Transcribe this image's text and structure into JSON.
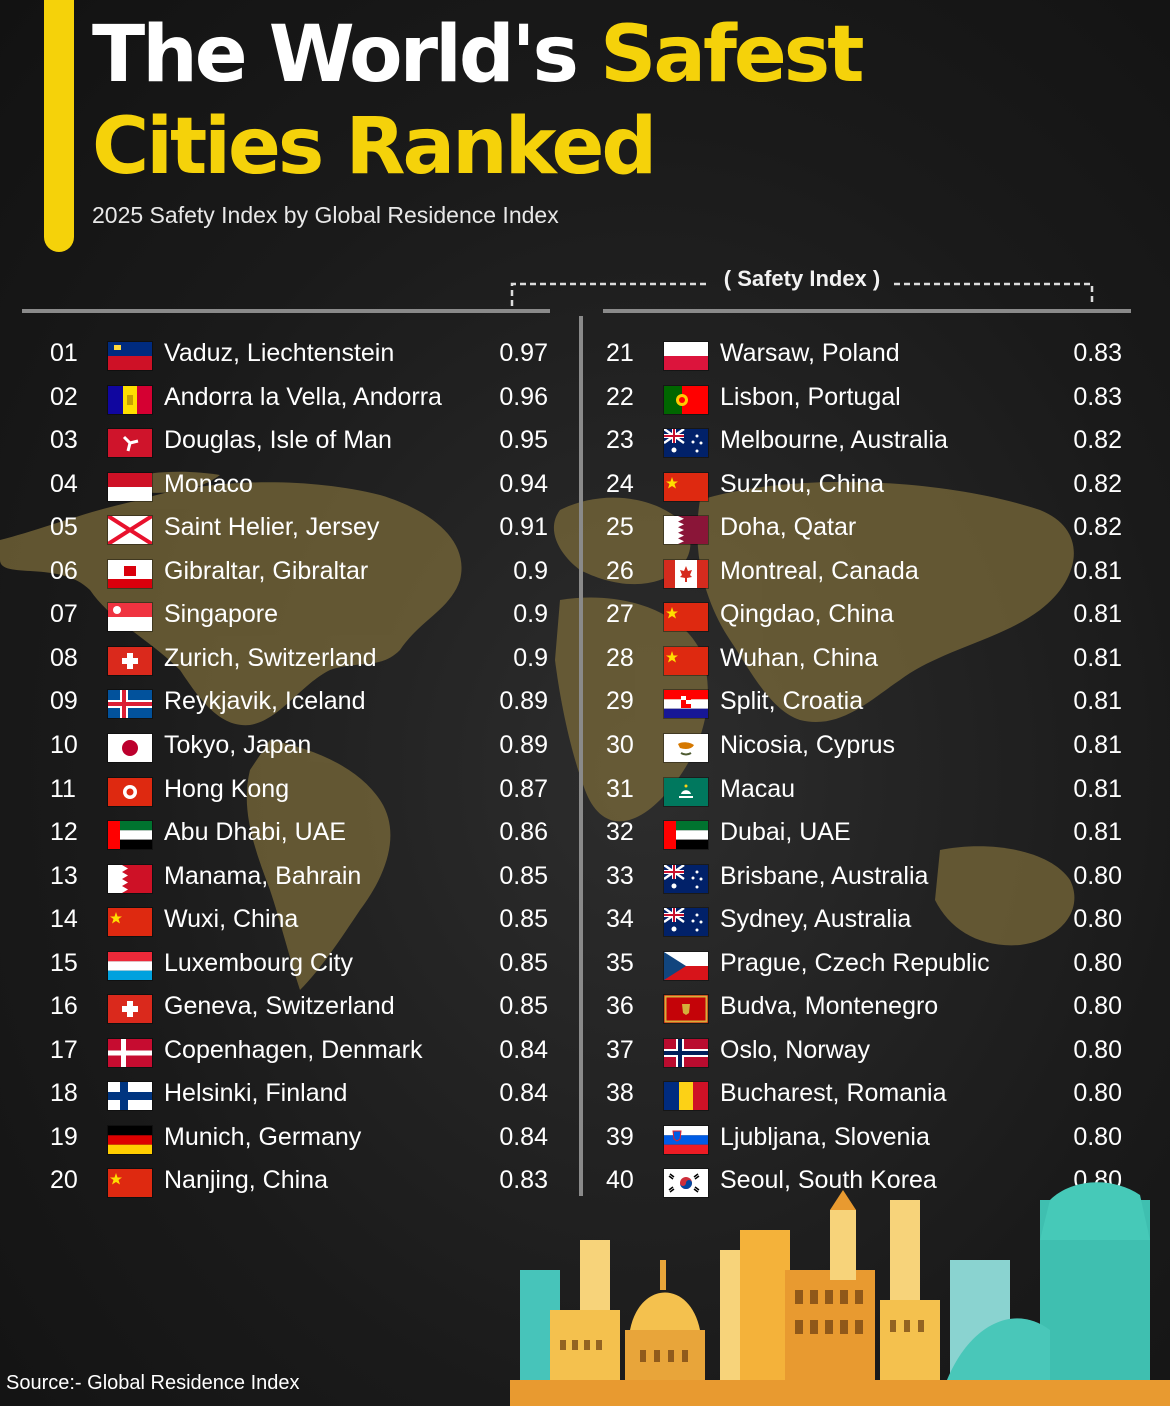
{
  "header": {
    "title_part1": "The World's",
    "title_part2": "Safest",
    "title_line2": "Cities Ranked",
    "subtitle": "2025 Safety Index by Global Residence Index",
    "column_label": "( Safety Index )"
  },
  "colors": {
    "accent": "#f5d20a",
    "background": "#1c1c1c",
    "map": "#7a6a3a"
  },
  "rankings": [
    {
      "rank": "01",
      "city": "Vaduz, Liechtenstein",
      "score": "0.97",
      "flag": "liechtenstein-flag-icon"
    },
    {
      "rank": "02",
      "city": "Andorra la Vella, Andorra",
      "score": "0.96",
      "flag": "andorra-flag-icon"
    },
    {
      "rank": "03",
      "city": "Douglas, Isle of Man",
      "score": "0.95",
      "flag": "isle-of-man-flag-icon"
    },
    {
      "rank": "04",
      "city": "Monaco",
      "score": "0.94",
      "flag": "monaco-flag-icon"
    },
    {
      "rank": "05",
      "city": "Saint Helier, Jersey",
      "score": "0.91",
      "flag": "jersey-flag-icon"
    },
    {
      "rank": "06",
      "city": "Gibraltar, Gibraltar",
      "score": "0.9",
      "flag": "gibraltar-flag-icon"
    },
    {
      "rank": "07",
      "city": "Singapore",
      "score": "0.9",
      "flag": "singapore-flag-icon"
    },
    {
      "rank": "08",
      "city": "Zurich, Switzerland",
      "score": "0.9",
      "flag": "switzerland-flag-icon"
    },
    {
      "rank": "09",
      "city": "Reykjavik, Iceland",
      "score": "0.89",
      "flag": "iceland-flag-icon"
    },
    {
      "rank": "10",
      "city": "Tokyo, Japan",
      "score": "0.89",
      "flag": "japan-flag-icon"
    },
    {
      "rank": "11",
      "city": "Hong Kong",
      "score": "0.87",
      "flag": "hong-kong-flag-icon"
    },
    {
      "rank": "12",
      "city": "Abu Dhabi, UAE",
      "score": "0.86",
      "flag": "uae-flag-icon"
    },
    {
      "rank": "13",
      "city": "Manama, Bahrain",
      "score": "0.85",
      "flag": "bahrain-flag-icon"
    },
    {
      "rank": "14",
      "city": "Wuxi, China",
      "score": "0.85",
      "flag": "china-flag-icon"
    },
    {
      "rank": "15",
      "city": "Luxembourg City",
      "score": "0.85",
      "flag": "luxembourg-flag-icon"
    },
    {
      "rank": "16",
      "city": "Geneva, Switzerland",
      "score": "0.85",
      "flag": "switzerland-flag-icon"
    },
    {
      "rank": "17",
      "city": "Copenhagen, Denmark",
      "score": "0.84",
      "flag": "denmark-flag-icon"
    },
    {
      "rank": "18",
      "city": "Helsinki, Finland",
      "score": "0.84",
      "flag": "finland-flag-icon"
    },
    {
      "rank": "19",
      "city": "Munich, Germany",
      "score": "0.84",
      "flag": "germany-flag-icon"
    },
    {
      "rank": "20",
      "city": "Nanjing, China",
      "score": "0.83",
      "flag": "china-flag-icon"
    },
    {
      "rank": "21",
      "city": "Warsaw, Poland",
      "score": "0.83",
      "flag": "poland-flag-icon"
    },
    {
      "rank": "22",
      "city": "Lisbon, Portugal",
      "score": "0.83",
      "flag": "portugal-flag-icon"
    },
    {
      "rank": "23",
      "city": "Melbourne, Australia",
      "score": "0.82",
      "flag": "australia-flag-icon"
    },
    {
      "rank": "24",
      "city": "Suzhou, China",
      "score": "0.82",
      "flag": "china-flag-icon"
    },
    {
      "rank": "25",
      "city": "Doha, Qatar",
      "score": "0.82",
      "flag": "qatar-flag-icon"
    },
    {
      "rank": "26",
      "city": "Montreal, Canada",
      "score": "0.81",
      "flag": "canada-flag-icon"
    },
    {
      "rank": "27",
      "city": "Qingdao, China",
      "score": "0.81",
      "flag": "china-flag-icon"
    },
    {
      "rank": "28",
      "city": "Wuhan, China",
      "score": "0.81",
      "flag": "china-flag-icon"
    },
    {
      "rank": "29",
      "city": "Split, Croatia",
      "score": "0.81",
      "flag": "croatia-flag-icon"
    },
    {
      "rank": "30",
      "city": "Nicosia, Cyprus",
      "score": "0.81",
      "flag": "cyprus-flag-icon"
    },
    {
      "rank": "31",
      "city": "Macau",
      "score": "0.81",
      "flag": "macau-flag-icon"
    },
    {
      "rank": "32",
      "city": "Dubai, UAE",
      "score": "0.81",
      "flag": "uae-flag-icon"
    },
    {
      "rank": "33",
      "city": "Brisbane, Australia",
      "score": "0.80",
      "flag": "australia-flag-icon"
    },
    {
      "rank": "34",
      "city": "Sydney, Australia",
      "score": "0.80",
      "flag": "australia-flag-icon"
    },
    {
      "rank": "35",
      "city": "Prague, Czech Republic",
      "score": "0.80",
      "flag": "czech-flag-icon"
    },
    {
      "rank": "36",
      "city": "Budva, Montenegro",
      "score": "0.80",
      "flag": "montenegro-flag-icon"
    },
    {
      "rank": "37",
      "city": "Oslo, Norway",
      "score": "0.80",
      "flag": "norway-flag-icon"
    },
    {
      "rank": "38",
      "city": "Bucharest, Romania",
      "score": "0.80",
      "flag": "romania-flag-icon"
    },
    {
      "rank": "39",
      "city": "Ljubljana, Slovenia",
      "score": "0.80",
      "flag": "slovenia-flag-icon"
    },
    {
      "rank": "40",
      "city": "Seoul, South Korea",
      "score": "0.80",
      "flag": "south-korea-flag-icon"
    }
  ],
  "footer": {
    "source": "Source:-  Global Residence Index"
  }
}
